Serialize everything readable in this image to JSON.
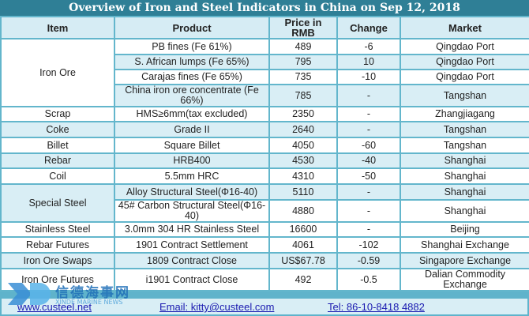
{
  "title": "Overview of Iron and Steel Indicators in China on Sep 12, 2018",
  "headers": [
    "Item",
    "Product",
    "Price in RMB",
    "Change",
    "Market"
  ],
  "groups": {
    "iron_ore": "Iron Ore",
    "special_steel": "Special Steel"
  },
  "rows": [
    {
      "item": "Iron Ore",
      "product": "PB fines (Fe 61%)",
      "price": "489",
      "change": "-6",
      "market": "Qingdao Port"
    },
    {
      "item": "Iron Ore",
      "product": "S. African lumps (Fe 65%)",
      "price": "795",
      "change": "10",
      "market": "Qingdao Port"
    },
    {
      "item": "Iron Ore",
      "product": "Carajas fines (Fe 65%)",
      "price": "735",
      "change": "-10",
      "market": "Qingdao Port"
    },
    {
      "item": "Iron Ore",
      "product": "China iron ore concentrate (Fe 66%)",
      "price": "785",
      "change": "-",
      "market": "Tangshan"
    },
    {
      "item": "Scrap",
      "product": "HMS≥6mm(tax excluded)",
      "price": "2350",
      "change": "-",
      "market": "Zhangjiagang"
    },
    {
      "item": "Coke",
      "product": "Grade II",
      "price": "2640",
      "change": "-",
      "market": "Tangshan"
    },
    {
      "item": "Billet",
      "product": "Square Billet",
      "price": "4050",
      "change": "-60",
      "market": "Tangshan"
    },
    {
      "item": "Rebar",
      "product": "HRB400",
      "price": "4530",
      "change": "-40",
      "market": "Shanghai"
    },
    {
      "item": "Coil",
      "product": "5.5mm HRC",
      "price": "4310",
      "change": "-50",
      "market": "Shanghai"
    },
    {
      "item": "Special Steel",
      "product": "Alloy Structural Steel(Φ16-40)",
      "price": "5110",
      "change": "-",
      "market": "Shanghai"
    },
    {
      "item": "Special Steel",
      "product": "45# Carbon Structural Steel(Φ16-40)",
      "price": "4880",
      "change": "-",
      "market": "Shanghai"
    },
    {
      "item": "Stainless Steel",
      "product": "3.0mm 304 HR Stainless Steel",
      "price": "16600",
      "change": "-",
      "market": "Beijing"
    },
    {
      "item": "Rebar Futures",
      "product": "1901 Contract Settlement",
      "price": "4061",
      "change": "-102",
      "market": "Shanghai Exchange"
    },
    {
      "item": "Iron Ore Swaps",
      "product": "1809 Contract Close",
      "price": "US$67.78",
      "change": "-0.59",
      "market": "Singapore Exchange"
    },
    {
      "item": "Iron Ore Futures",
      "product": "i1901 Contract Close",
      "price": "492",
      "change": "-0.5",
      "market": "Dalian Commodity Exchange"
    }
  ],
  "footer": {
    "website": "www.custeel.net",
    "email": "Email: kitty@custeel.com",
    "tel": "Tel: 86-10-8418 4882"
  },
  "watermark": {
    "cn": "信德海事网",
    "en": "XINDE MARINE NEWS"
  }
}
